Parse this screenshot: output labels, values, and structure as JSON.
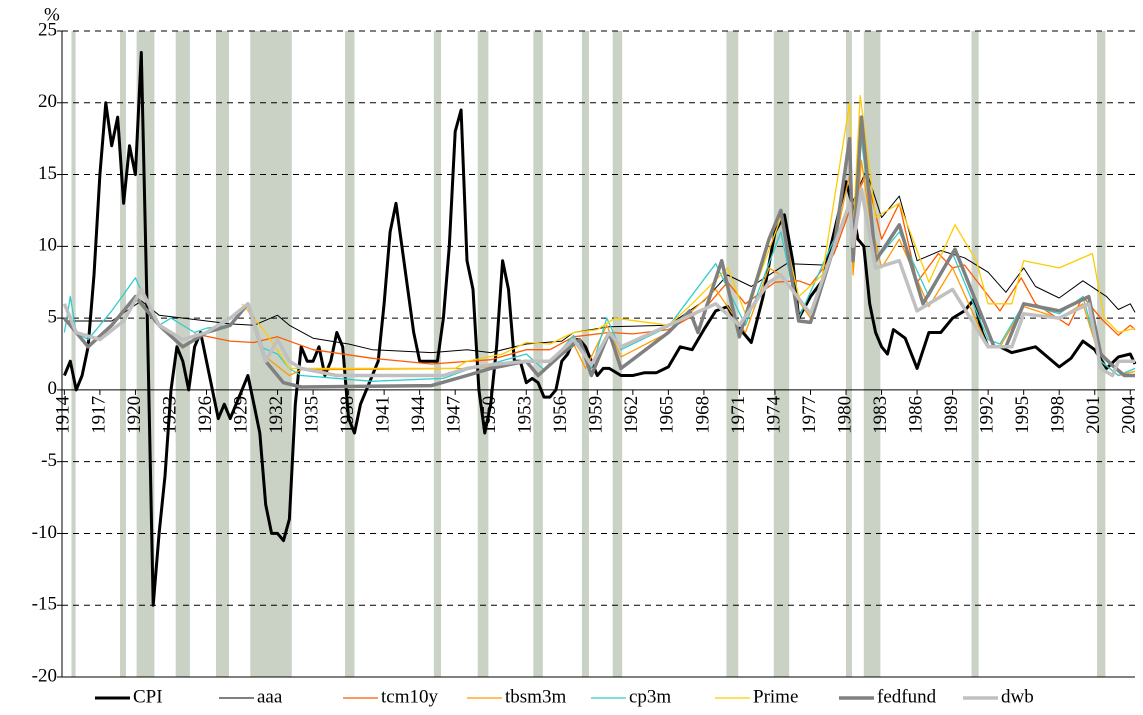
{
  "chart_data": {
    "type": "line",
    "y_unit_label": "%",
    "xlim": [
      1913.8,
      2004.4
    ],
    "ylim": [
      -20,
      25
    ],
    "yticks": [
      -20,
      -15,
      -10,
      -5,
      0,
      5,
      10,
      15,
      20,
      25
    ],
    "xticks": [
      1914,
      1917,
      1920,
      1923,
      1926,
      1929,
      1932,
      1935,
      1938,
      1941,
      1944,
      1947,
      1950,
      1953,
      1956,
      1959,
      1962,
      1965,
      1968,
      1971,
      1974,
      1977,
      1980,
      1983,
      1986,
      1989,
      1992,
      1995,
      1998,
      2001,
      2004
    ],
    "grid": true,
    "legend": "bottom",
    "shaded_periods": [
      [
        1914.6,
        1914.95
      ],
      [
        1918.7,
        1919.2
      ],
      [
        1920.1,
        1921.6
      ],
      [
        1923.4,
        1924.6
      ],
      [
        1926.8,
        1927.9
      ],
      [
        1929.7,
        1933.2
      ],
      [
        1937.7,
        1938.5
      ],
      [
        1945.2,
        1945.8
      ],
      [
        1948.9,
        1949.8
      ],
      [
        1953.6,
        1954.4
      ],
      [
        1957.7,
        1958.3
      ],
      [
        1960.3,
        1961.1
      ],
      [
        1969.9,
        1970.9
      ],
      [
        1973.9,
        1975.2
      ],
      [
        1980.0,
        1980.5
      ],
      [
        1981.5,
        1982.9
      ],
      [
        1990.6,
        1991.2
      ],
      [
        2001.2,
        2001.9
      ]
    ],
    "shade_color": "#c9d2c5",
    "series": [
      {
        "name": "CPI",
        "color": "#000000",
        "x": [
          1914,
          1914.5,
          1915,
          1915.5,
          1916,
          1916.5,
          1917,
          1917.5,
          1918,
          1918.5,
          1919,
          1919.5,
          1920,
          1920.5,
          1921,
          1921.5,
          1922,
          1922.5,
          1923,
          1923.5,
          1924,
          1924.5,
          1925,
          1925.5,
          1926,
          1926.5,
          1927,
          1927.5,
          1928,
          1928.5,
          1929,
          1929.5,
          1930,
          1930.5,
          1931,
          1931.5,
          1932,
          1932.5,
          1933,
          1933.5,
          1934,
          1934.5,
          1935,
          1935.5,
          1936,
          1936.5,
          1937,
          1937.5,
          1938,
          1938.5,
          1939,
          1939.5,
          1940,
          1940.5,
          1941,
          1941.5,
          1942,
          1942.5,
          1943,
          1943.5,
          1944,
          1944.5,
          1945,
          1945.5,
          1946,
          1946.5,
          1947,
          1947.5,
          1948,
          1948.5,
          1949,
          1949.5,
          1950,
          1950.5,
          1951,
          1951.5,
          1952,
          1952.5,
          1953,
          1953.5,
          1954,
          1954.5,
          1955,
          1955.5,
          1956,
          1956.5,
          1957,
          1957.5,
          1958,
          1958.5,
          1959,
          1959.5,
          1960,
          1961,
          1962,
          1963,
          1964,
          1965,
          1966,
          1967,
          1968,
          1969,
          1970,
          1971,
          1972,
          1973,
          1974,
          1974.8,
          1975.5,
          1976,
          1977,
          1978,
          1979,
          1980,
          1980.5,
          1981,
          1981.5,
          1982,
          1982.5,
          1983,
          1983.5,
          1984,
          1985,
          1986,
          1987,
          1988,
          1989,
          1990,
          1990.8,
          1991.5,
          1992,
          1993,
          1994,
          1995,
          1996,
          1997,
          1998,
          1999,
          2000,
          2001,
          2002,
          2003,
          2004,
          2004.4
        ],
        "values": [
          1,
          2,
          0,
          1,
          3,
          8,
          15,
          20,
          17,
          19,
          13,
          17,
          15,
          23.5,
          5,
          -15,
          -10,
          -6,
          0,
          3,
          2,
          0,
          3,
          4,
          2,
          0,
          -2,
          -1,
          -2,
          -1,
          0,
          1,
          -1,
          -3,
          -8,
          -10,
          -10,
          -10.5,
          -9,
          -1,
          3,
          2,
          2,
          3,
          1,
          2,
          4,
          3,
          -2,
          -3,
          -1,
          0,
          1,
          2,
          6,
          11,
          13,
          10,
          7,
          4,
          2,
          2,
          2,
          2,
          5,
          10,
          18,
          19.5,
          9,
          7,
          0,
          -3,
          -1,
          3,
          9,
          7,
          2,
          2,
          0.5,
          0.8,
          0.5,
          -0.5,
          -0.5,
          0,
          2,
          2.5,
          3.5,
          3.5,
          3,
          2,
          1,
          1.5,
          1.5,
          1,
          1,
          1.2,
          1.2,
          1.6,
          3,
          2.8,
          4.2,
          5.5,
          5.8,
          4.3,
          3.3,
          6.5,
          11,
          12.2,
          9,
          5,
          6.5,
          7.6,
          11,
          14.5,
          13,
          10.5,
          10,
          6,
          4,
          3,
          2.5,
          4.2,
          3.6,
          1.5,
          4,
          4,
          5,
          5.5,
          6.3,
          4,
          3,
          3,
          2.6,
          2.8,
          3,
          2.3,
          1.6,
          2.2,
          3.4,
          2.8,
          1.5,
          2.3,
          2.5,
          1.8
        ]
      },
      {
        "name": "aaa",
        "color": "#000000",
        "x": [
          1914,
          1918,
          1920.5,
          1922,
          1925,
          1928,
          1930,
          1932,
          1933,
          1935,
          1938,
          1940,
          1945,
          1948,
          1950,
          1953,
          1956,
          1957,
          1960,
          1965,
          1968,
          1970,
          1972,
          1975,
          1978,
          1980,
          1981.7,
          1983,
          1984.5,
          1986,
          1988,
          1990,
          1992,
          1993.5,
          1995,
          1996,
          1998,
          2000,
          2002,
          2003,
          2004,
          2004.4
        ],
        "values": [
          4.8,
          4.8,
          6.2,
          5.2,
          4.9,
          4.6,
          4.5,
          5.2,
          4.5,
          3.6,
          3.2,
          2.8,
          2.6,
          2.8,
          2.6,
          3.2,
          3.4,
          4,
          4.4,
          4.5,
          6.2,
          8,
          7.2,
          8.8,
          8.7,
          12,
          15.3,
          12,
          13.5,
          9,
          9.7,
          9.2,
          8.2,
          6.8,
          8.5,
          7.2,
          6.4,
          7.6,
          6.5,
          5.6,
          6,
          5.4
        ]
      },
      {
        "name": "tcm10y",
        "color": "#ff5a00",
        "x": [
          1925,
          1928,
          1930,
          1932,
          1935,
          1940,
          1945,
          1950,
          1953,
          1955,
          1957,
          1960,
          1962,
          1965,
          1968,
          1970,
          1971.5,
          1974,
          1976,
          1977,
          1979,
          1980.3,
          1981.7,
          1983,
          1984.5,
          1986,
          1987.8,
          1989,
          1990,
          1993,
          1994.8,
          1996,
          1998.8,
          2000,
          2001.5,
          2003,
          2004,
          2004.4
        ],
        "values": [
          3.9,
          3.4,
          3.3,
          3.7,
          2.8,
          2.2,
          1.8,
          2.1,
          2.8,
          2.8,
          3.7,
          4,
          3.9,
          4.2,
          5.6,
          7.5,
          6,
          7.5,
          7.6,
          7.3,
          9.5,
          12.5,
          15,
          10.5,
          13,
          7.5,
          9.5,
          8.5,
          8.7,
          5.5,
          7.8,
          6,
          4.5,
          6.5,
          5,
          3.8,
          4.5,
          4.2
        ]
      },
      {
        "name": "tbsm3m",
        "color": "#ff9900",
        "x": [
          1931,
          1933,
          1934,
          1948,
          1950,
          1953,
          1954,
          1957,
          1958,
          1959.8,
          1961,
          1965,
          1969,
          1971.5,
          1973.5,
          1974.5,
          1977,
          1979,
          1980.3,
          1980.6,
          1981.3,
          1982,
          1983,
          1984.5,
          1987,
          1989,
          1992,
          1993,
          1995,
          1998,
          2000,
          2001.5,
          2003,
          2004.4
        ],
        "values": [
          2.3,
          1,
          1.4,
          1.5,
          1.6,
          2,
          1,
          3.2,
          1.5,
          4.5,
          2.3,
          4,
          7,
          4,
          8.5,
          8,
          5,
          10,
          15,
          8,
          16,
          12,
          8.5,
          10.5,
          5.8,
          8.5,
          3,
          3,
          5.8,
          5,
          6,
          2,
          1,
          1.3
        ]
      },
      {
        "name": "cp3m",
        "color": "#33cccc",
        "x": [
          1914,
          1914.5,
          1915,
          1916,
          1918,
          1920,
          1921,
          1922,
          1923,
          1925,
          1926,
          1928,
          1929.5,
          1930.5,
          1932,
          1933,
          1934,
          1940,
          1946,
          1948,
          1950,
          1953,
          1954.5,
          1957,
          1958.5,
          1959.8,
          1961,
          1965,
          1969,
          1971.5,
          1974.5,
          1976,
          1979,
          1980.3,
          1980.6,
          1981.3,
          1982.5,
          1984.5,
          1987,
          1989,
          1992,
          1993,
          1995,
          1998,
          2000,
          2001.5,
          2003,
          2004.4
        ],
        "values": [
          4,
          6.5,
          4,
          3.5,
          5.5,
          7.8,
          6,
          4.5,
          5,
          4,
          4.3,
          4.5,
          6,
          3,
          2.5,
          1.5,
          1,
          0.6,
          0.8,
          1.4,
          1.8,
          2.5,
          1.4,
          3.8,
          1.5,
          5,
          2.8,
          4.4,
          8.8,
          4.5,
          11,
          5,
          10.5,
          17,
          9,
          17.5,
          9,
          11,
          6.5,
          9.5,
          3.5,
          3.2,
          6,
          5.3,
          6.5,
          2,
          1,
          1.5
        ]
      },
      {
        "name": "Prime",
        "color": "#ffcc00",
        "x": [
          1929,
          1931,
          1933,
          1934,
          1947,
          1948,
          1951,
          1953,
          1955,
          1957,
          1959,
          1960.5,
          1965,
          1967,
          1970,
          1971.5,
          1974.5,
          1976,
          1978,
          1980.3,
          1980.6,
          1981.2,
          1982.5,
          1984.5,
          1987,
          1989.2,
          1991,
          1992,
          1994,
          1995,
          1998,
          2000.8,
          2001.8,
          2003,
          2004.4
        ],
        "values": [
          6,
          4,
          1.5,
          1.5,
          1.5,
          2,
          2.5,
          3.3,
          3.2,
          4,
          4.2,
          5,
          4.5,
          6,
          8.5,
          5.3,
          12,
          6.5,
          8,
          20,
          11,
          20.5,
          12,
          13,
          7.5,
          11.5,
          9,
          6,
          6,
          9,
          8.5,
          9.5,
          5,
          4,
          4.3
        ]
      },
      {
        "name": "fedfund",
        "color": "#808080",
        "x": [
          1914,
          1916,
          1918,
          1920,
          1922,
          1924,
          1926,
          1928,
          1929.5,
          1931,
          1932.5,
          1934,
          1945,
          1948,
          1950,
          1953,
          1954,
          1956,
          1957.5,
          1958.5,
          1960,
          1961,
          1965,
          1966.8,
          1967.5,
          1969.5,
          1971,
          1973.5,
          1974.5,
          1976,
          1977,
          1979,
          1980.3,
          1980.6,
          1981.3,
          1982.5,
          1984.5,
          1986.5,
          1989.2,
          1992.5,
          1993.5,
          1995,
          1998,
          2000.5,
          2001.5,
          2002.5,
          2003.5,
          2004.4
        ],
        "values": [
          5,
          3,
          4.5,
          6.5,
          4.5,
          3,
          4,
          4.5,
          6,
          2,
          0.5,
          0.2,
          0.3,
          1,
          1.5,
          2,
          1,
          2.5,
          3.5,
          1,
          4,
          1.5,
          4,
          5.5,
          4,
          9,
          3.7,
          10.5,
          12.5,
          4.8,
          4.7,
          10,
          17.5,
          9,
          19,
          9,
          11.5,
          6,
          9.8,
          3,
          3,
          6,
          5.5,
          6.5,
          2.5,
          1.7,
          1,
          1
        ]
      },
      {
        "name": "dwb",
        "color": "#c0c0c0",
        "x": [
          1914,
          1915,
          1917,
          1919,
          1920.5,
          1922,
          1924,
          1926,
          1928,
          1929.5,
          1931,
          1932,
          1933,
          1934,
          1937,
          1942,
          1946,
          1948,
          1950,
          1953,
          1955,
          1957,
          1958.5,
          1960,
          1961,
          1965,
          1969,
          1971,
          1973.5,
          1974.5,
          1977,
          1979,
          1980.3,
          1980.6,
          1981.3,
          1982.5,
          1984.5,
          1986,
          1989,
          1992,
          1994,
          1995,
          1998,
          2000.5,
          2001.5,
          2002.5,
          2003,
          2004.4
        ],
        "values": [
          6,
          4,
          3.5,
          4.8,
          7,
          4.5,
          3.5,
          4,
          5,
          6,
          2,
          3.5,
          2,
          1.5,
          1,
          1,
          1,
          1.5,
          1.75,
          2,
          2,
          3.5,
          1.75,
          4,
          3,
          4.5,
          6,
          4.5,
          7.5,
          8,
          5.3,
          10,
          13,
          10,
          14,
          8.5,
          9,
          5.5,
          7,
          3,
          3,
          5.3,
          5,
          6,
          1.5,
          1,
          2,
          2
        ]
      }
    ]
  }
}
